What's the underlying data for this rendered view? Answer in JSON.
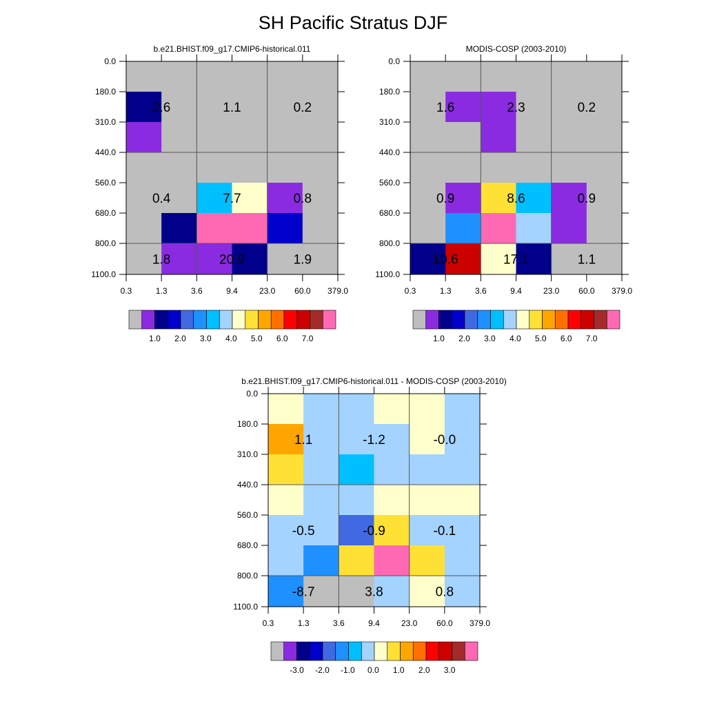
{
  "title": "SH Pacific Stratus DJF",
  "colors": {
    "model_palette": [
      "#bebebe",
      "#8a2be2",
      "#00008b",
      "#0000cd",
      "#4169e1",
      "#1e90ff",
      "#00bfff",
      "#a4d3ff",
      "#ffffcc",
      "#ffe135",
      "#ffa500",
      "#ff7000",
      "#ff0000",
      "#cd0000",
      "#a52a2a",
      "#ff69b4"
    ],
    "diff_palette": [
      "#bebebe",
      "#8a2be2",
      "#00008b",
      "#0000cd",
      "#4169e1",
      "#1e90ff",
      "#00bfff",
      "#a4d3ff",
      "#ffffcc",
      "#ffe135",
      "#ffa500",
      "#ff7000",
      "#ff0000",
      "#cd0000",
      "#a52a2a",
      "#ff69b4"
    ]
  },
  "chart_data": [
    {
      "type": "heatmap",
      "title": "b.e21.BHIST.f09_g17.CMIP6-historical.011",
      "x_ticks": [
        "0.3",
        "1.3",
        "3.6",
        "9.4",
        "23.0",
        "60.0",
        "379.0"
      ],
      "y_ticks": [
        "0.0",
        "180.0",
        "310.0",
        "440.0",
        "560.0",
        "680.0",
        "800.0",
        "1100.0"
      ],
      "cells": [
        [
          0,
          0,
          0,
          0,
          0,
          0
        ],
        [
          2,
          0,
          0,
          0,
          0,
          0
        ],
        [
          1,
          0,
          0,
          0,
          0,
          0
        ],
        [
          0,
          0,
          0,
          0,
          0,
          0
        ],
        [
          0,
          0,
          6,
          8,
          1,
          0
        ],
        [
          0,
          2,
          15,
          15,
          3,
          0
        ],
        [
          0,
          1,
          1,
          2,
          0,
          0
        ]
      ],
      "labels": [
        {
          "text": "2.6",
          "col": 0,
          "row": 1
        },
        {
          "text": "1.1",
          "col": 2,
          "row": 1
        },
        {
          "text": "0.2",
          "col": 4,
          "row": 1
        },
        {
          "text": "0.4",
          "col": 0,
          "row": 4
        },
        {
          "text": "7.7",
          "col": 2,
          "row": 4
        },
        {
          "text": "0.8",
          "col": 4,
          "row": 4
        },
        {
          "text": "1.8",
          "col": 0,
          "row": 6
        },
        {
          "text": "20.9",
          "col": 2,
          "row": 6
        },
        {
          "text": "1.9",
          "col": 4,
          "row": 6
        }
      ],
      "colorbar_labels": [
        "1.0",
        "2.0",
        "3.0",
        "4.0",
        "5.0",
        "6.0",
        "7.0"
      ]
    },
    {
      "type": "heatmap",
      "title": "MODIS-COSP (2003-2010)",
      "x_ticks": [
        "0.3",
        "1.3",
        "3.6",
        "9.4",
        "23.0",
        "60.0",
        "379.0"
      ],
      "y_ticks": [
        "0.0",
        "180.0",
        "310.0",
        "440.0",
        "560.0",
        "680.0",
        "800.0",
        "1100.0"
      ],
      "cells": [
        [
          0,
          0,
          0,
          0,
          0,
          0
        ],
        [
          0,
          1,
          1,
          0,
          0,
          0
        ],
        [
          0,
          0,
          1,
          0,
          0,
          0
        ],
        [
          0,
          0,
          0,
          0,
          0,
          0
        ],
        [
          0,
          1,
          9,
          6,
          1,
          0
        ],
        [
          0,
          5,
          15,
          7,
          1,
          0
        ],
        [
          2,
          13,
          8,
          2,
          0,
          0
        ]
      ],
      "labels": [
        {
          "text": "1.6",
          "col": 0,
          "row": 1
        },
        {
          "text": "2.3",
          "col": 2,
          "row": 1
        },
        {
          "text": "0.2",
          "col": 4,
          "row": 1
        },
        {
          "text": "0.9",
          "col": 0,
          "row": 4
        },
        {
          "text": "8.6",
          "col": 2,
          "row": 4
        },
        {
          "text": "0.9",
          "col": 4,
          "row": 4
        },
        {
          "text": "10.6",
          "col": 0,
          "row": 6
        },
        {
          "text": "17.1",
          "col": 2,
          "row": 6
        },
        {
          "text": "1.1",
          "col": 4,
          "row": 6
        }
      ],
      "colorbar_labels": [
        "1.0",
        "2.0",
        "3.0",
        "4.0",
        "5.0",
        "6.0",
        "7.0"
      ]
    },
    {
      "type": "heatmap",
      "title": "b.e21.BHIST.f09_g17.CMIP6-historical.011 - MODIS-COSP (2003-2010)",
      "x_ticks": [
        "0.3",
        "1.3",
        "3.6",
        "9.4",
        "23.0",
        "60.0",
        "379.0"
      ],
      "y_ticks": [
        "0.0",
        "180.0",
        "310.0",
        "440.0",
        "560.0",
        "680.0",
        "800.0",
        "1100.0"
      ],
      "cells": [
        [
          8,
          7,
          7,
          8,
          8,
          7
        ],
        [
          10,
          7,
          7,
          7,
          8,
          7
        ],
        [
          9,
          7,
          6,
          7,
          7,
          7
        ],
        [
          8,
          7,
          7,
          8,
          8,
          8
        ],
        [
          7,
          7,
          4,
          9,
          7,
          7
        ],
        [
          7,
          5,
          9,
          15,
          9,
          7
        ],
        [
          5,
          0,
          0,
          7,
          8,
          7
        ]
      ],
      "labels": [
        {
          "text": "1.1",
          "col": 0,
          "row": 1
        },
        {
          "text": "-1.2",
          "col": 2,
          "row": 1
        },
        {
          "text": "-0.0",
          "col": 4,
          "row": 1
        },
        {
          "text": "-0.5",
          "col": 0,
          "row": 4
        },
        {
          "text": "-0.9",
          "col": 2,
          "row": 4
        },
        {
          "text": "-0.1",
          "col": 4,
          "row": 4
        },
        {
          "text": "-8.7",
          "col": 0,
          "row": 6
        },
        {
          "text": "3.8",
          "col": 2,
          "row": 6
        },
        {
          "text": "0.8",
          "col": 4,
          "row": 6
        }
      ],
      "colorbar_labels": [
        "-3.0",
        "-2.0",
        "-1.0",
        "0.0",
        "1.0",
        "2.0",
        "3.0"
      ]
    }
  ]
}
